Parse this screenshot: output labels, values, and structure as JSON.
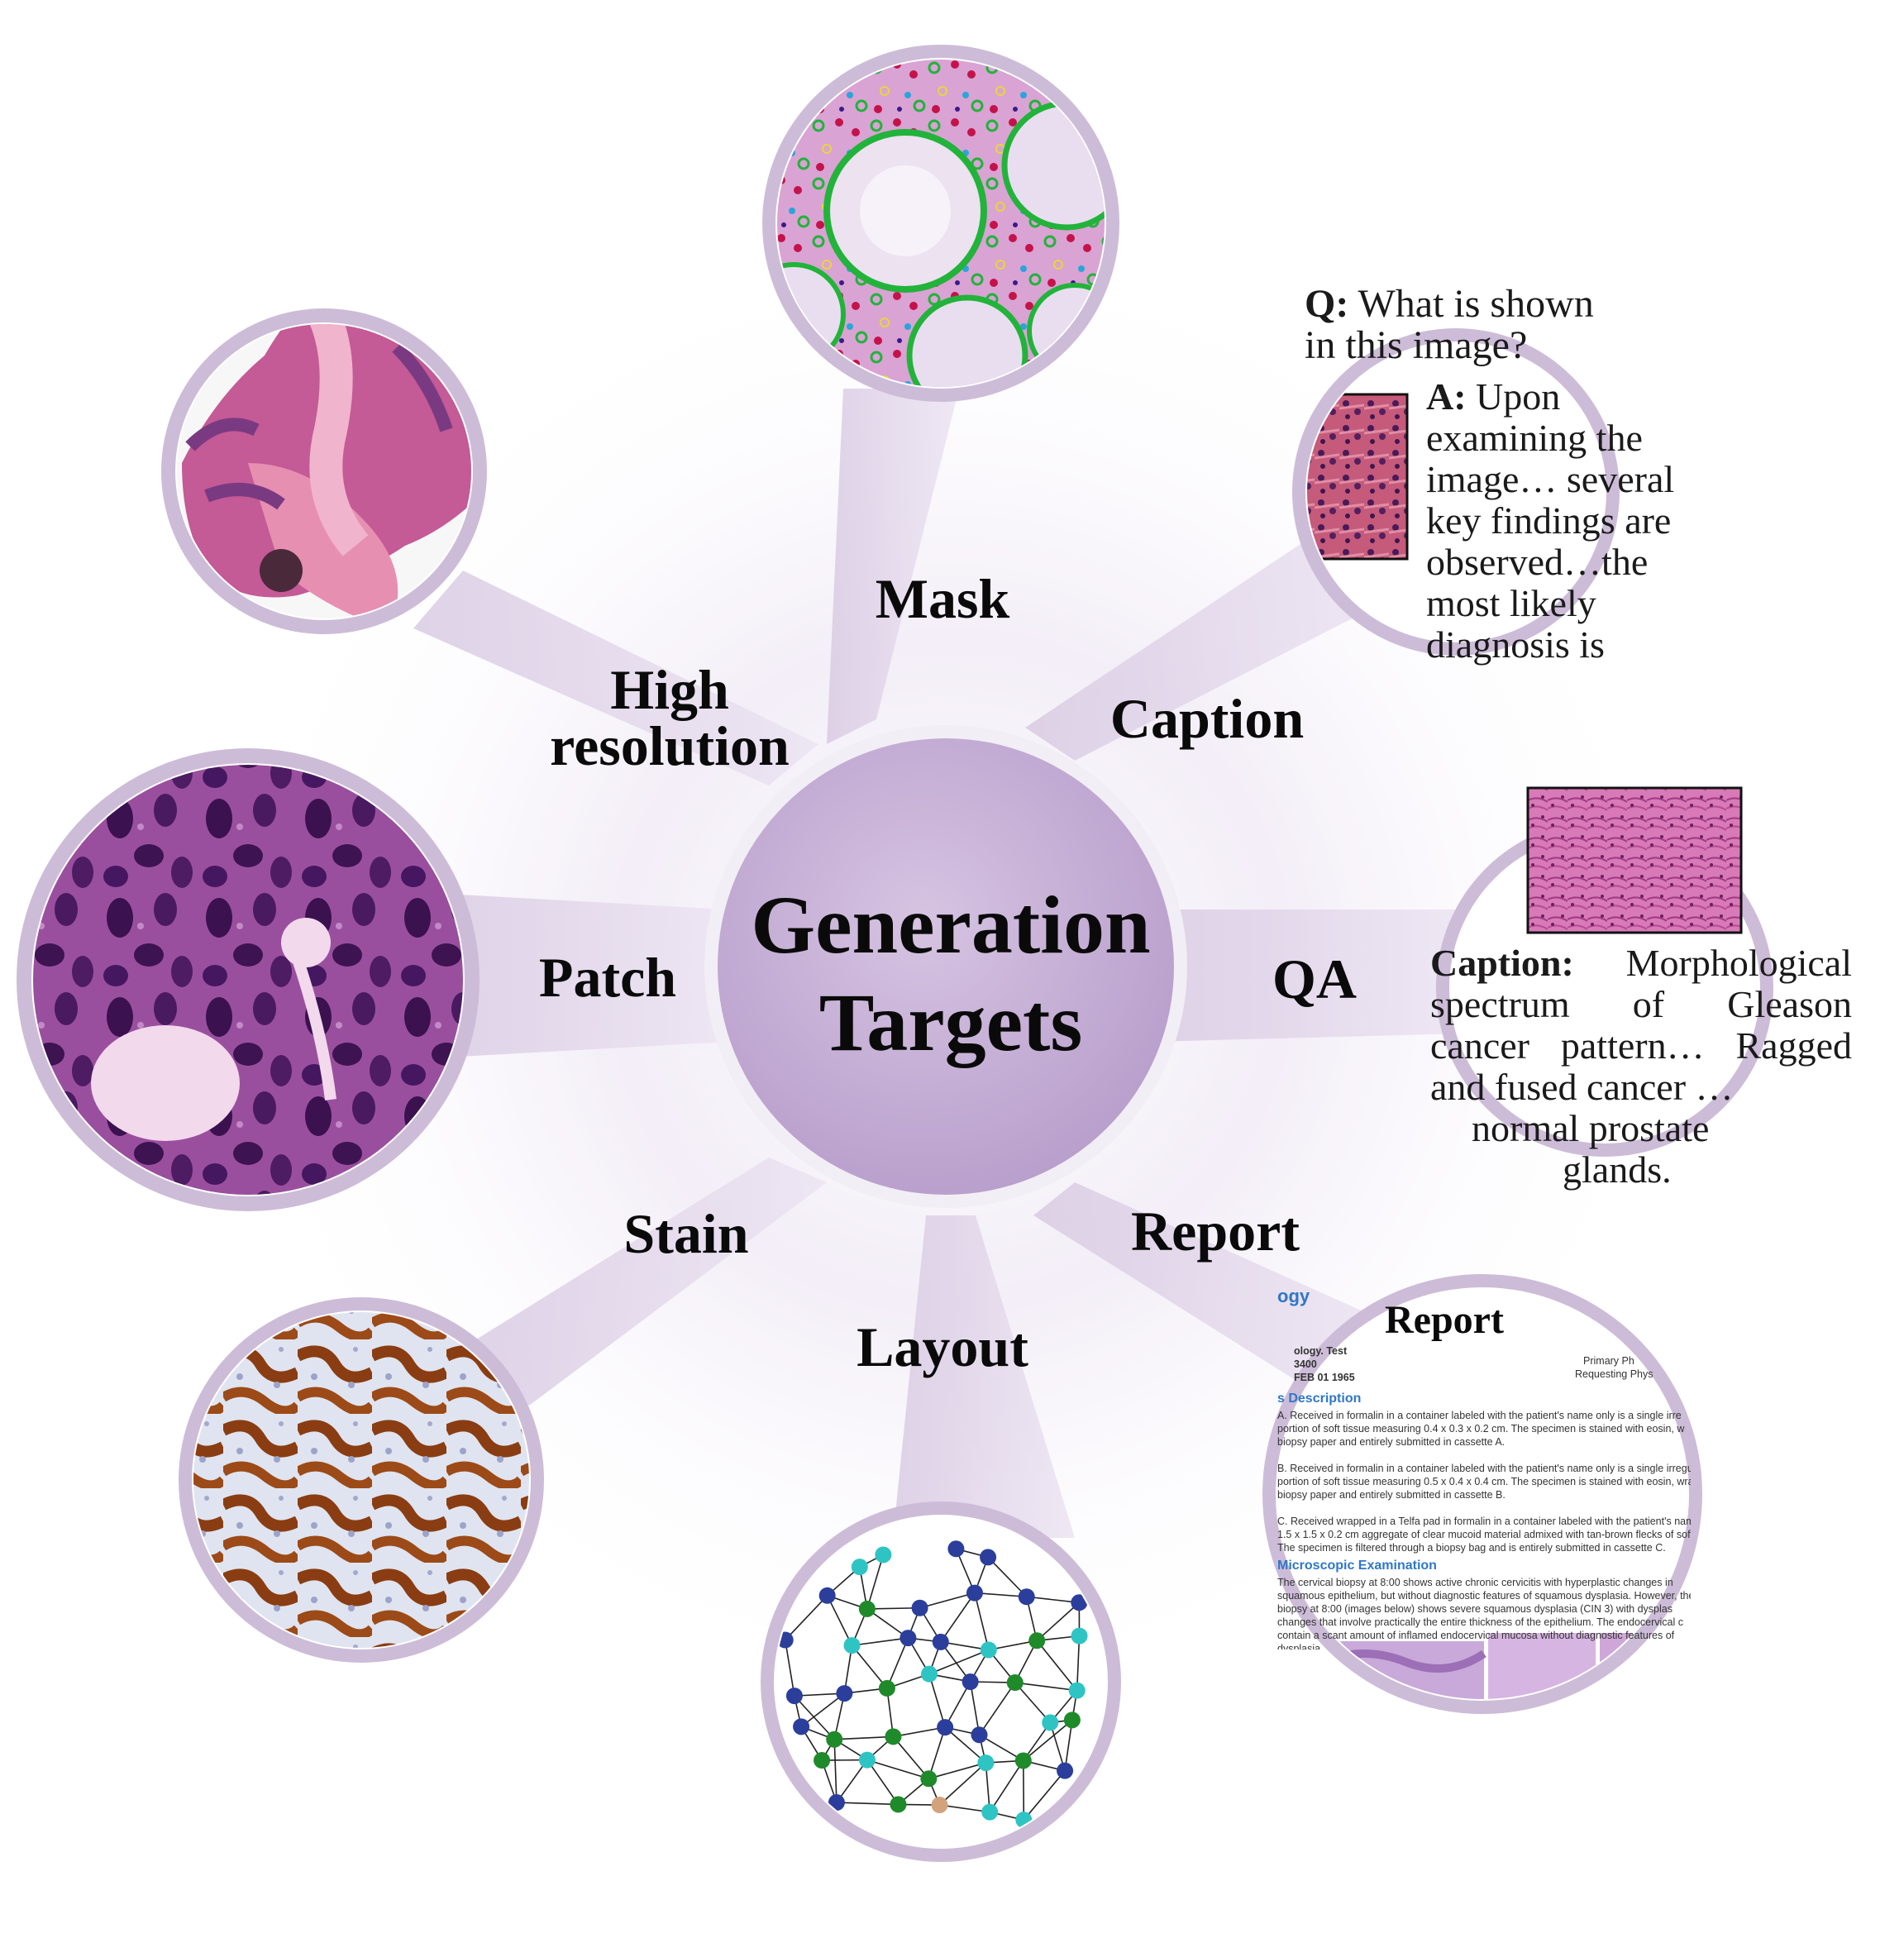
{
  "center": {
    "line1": "Generation",
    "line2": "Targets"
  },
  "labels": {
    "mask": "Mask",
    "caption": "Caption",
    "qa": "QA",
    "report": "Report",
    "layout": "Layout",
    "stain": "Stain",
    "patch": "Patch",
    "high_res_1": "High",
    "high_res_2": "resolution"
  },
  "caption_card": {
    "q_label": "Q:",
    "q_text_1": "What is shown",
    "q_text_2": "in this image?",
    "a_label": "A:",
    "a_text_0": "Upon",
    "a_lines": [
      "examining the",
      "image… several",
      "key findings are",
      "observed…the",
      "most likely",
      "diagnosis is"
    ]
  },
  "qa_card": {
    "caption_label": "Caption:",
    "line1_rest": "Morphological",
    "lines": [
      "spectrum of Gleason",
      "cancer pattern… Ragged",
      "and fused cancer …",
      "normal prostate",
      "glands."
    ]
  },
  "report_card": {
    "title": "Report",
    "header_frag": "ogy",
    "meta": [
      "ology. Test",
      "3400",
      "FEB 01 1965"
    ],
    "meta_right": [
      "Primary Ph",
      "Requesting Phys"
    ],
    "section1": "s Description",
    "lines_a": [
      "A. Received in formalin in a container labeled with the patient's name only is a single irre",
      "portion of soft tissue measuring 0.4 x 0.3 x 0.2 cm. The specimen is stained with eosin, w",
      "biopsy paper and entirely submitted in cassette A."
    ],
    "lines_b": [
      "B. Received in formalin in a container labeled with the patient's name only is a single irregula",
      "portion of soft tissue measuring 0.5 x 0.4 x 0.4 cm. The specimen is stained with eosin, wrap",
      "biopsy paper and entirely submitted in cassette B."
    ],
    "lines_c": [
      "C. Received wrapped in a Telfa pad in formalin in a container labeled with the patient's name",
      "1.5 x 1.5 x 0.2 cm aggregate of clear mucoid material admixed with tan-brown flecks of soft tis",
      "The specimen is filtered through a biopsy bag and is entirely submitted in cassette C."
    ],
    "section2": "Microscopic Examination",
    "lines_d": [
      "The cervical biopsy at 8:00 shows active chronic cervicitis with hyperplastic changes in",
      "squamous epithelium, but without diagnostic features of squamous dysplasia. However, the",
      "biopsy at 8:00 (images below) shows severe squamous dysplasia (CIN 3) with dysplas",
      "changes that involve practically the entire thickness of the epithelium. The endocervical c",
      "contain a scant amount of inflamed endocervical mucosa without diagnostic features of",
      "dysplasia."
    ]
  },
  "colors": {
    "bubble_border": "#cdbcd8",
    "center_fill": "#c5b0d5",
    "he_pink": "#e89ab8",
    "he_purple": "#5a2a66",
    "graph_navy": "#2b3e9c",
    "graph_teal": "#2fc4c4",
    "graph_green": "#1e8a2a",
    "graph_tan": "#d2a27c"
  }
}
